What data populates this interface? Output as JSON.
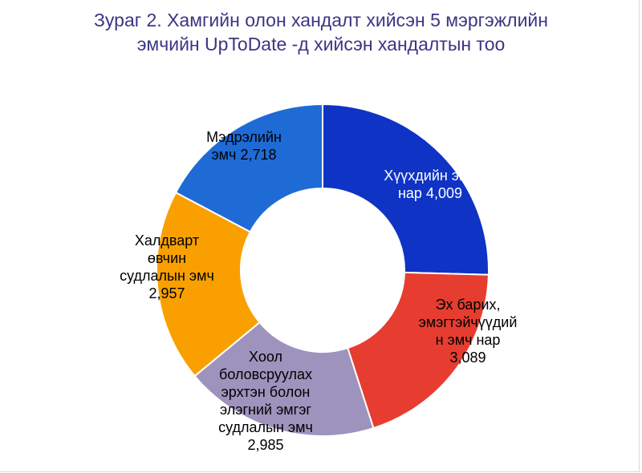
{
  "chart_data": {
    "type": "pie",
    "variant": "donut",
    "title_lines": [
      "Зураг 2. Хамгийн олон хандалт хийсэн 5 мэргэжлийн",
      "эмчийн UpToDate -д хийсэн хандалтын тоо"
    ],
    "slices": [
      {
        "label_lines": [
          "Хүүхдийн эмч",
          "нар 4,009"
        ],
        "value": 4009,
        "color": "#0f33c4",
        "label_color": "#ffffff"
      },
      {
        "label_lines": [
          "Эх барих,",
          "эмэгтэйчүүдий",
          "н эмч нар",
          "3,089"
        ],
        "value": 3089,
        "color": "#e63d30",
        "label_color": "#000000"
      },
      {
        "label_lines": [
          "Хоол",
          "боловсруулах",
          "эрхтэн болон",
          "элэгний эмгэг",
          "судлалын эмч",
          "2,985"
        ],
        "value": 2985,
        "color": "#9e93bd",
        "label_color": "#000000"
      },
      {
        "label_lines": [
          "Халдварт",
          "өвчин",
          "судлалын эмч",
          "2,957"
        ],
        "value": 2957,
        "color": "#f9a000",
        "label_color": "#000000"
      },
      {
        "label_lines": [
          "Мэдрэлийн",
          "эмч 2,718"
        ],
        "value": 2718,
        "color": "#1f6bd6",
        "label_color": "#000000"
      }
    ],
    "start_angle_deg": 0,
    "direction": "clockwise",
    "legend": "none"
  }
}
